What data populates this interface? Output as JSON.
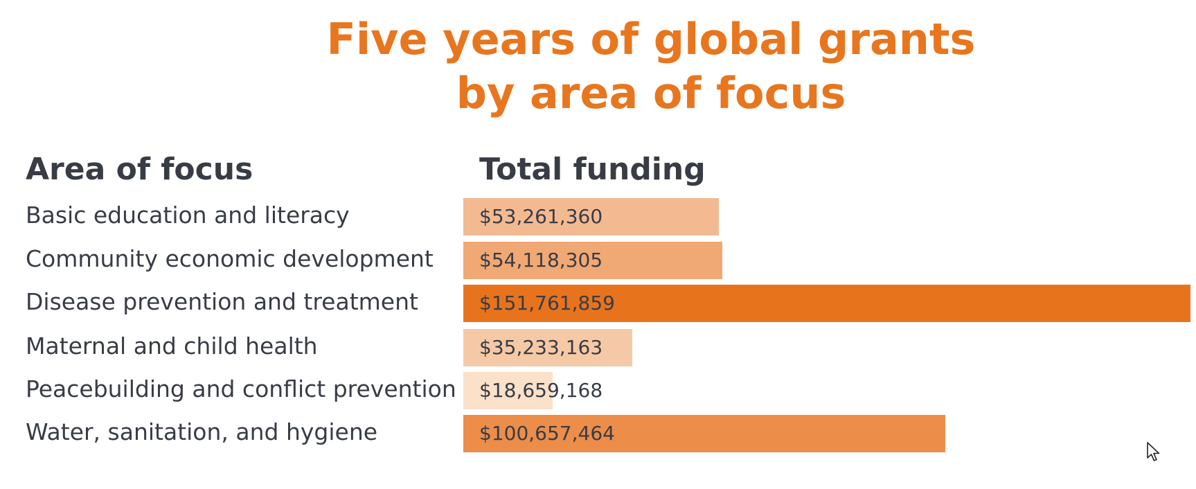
{
  "title": {
    "line1": "Five years of global grants",
    "line2": "by area of focus"
  },
  "chart_data": {
    "type": "bar",
    "orientation": "horizontal",
    "title": "Five years of global grants by area of focus",
    "category_header": "Area of focus",
    "value_header": "Total funding",
    "categories": [
      "Basic education and literacy",
      "Community economic development",
      "Disease prevention and treatment",
      "Maternal and child health",
      "Peacebuilding and conflict prevention",
      "Water, sanitation, and hygiene"
    ],
    "values": [
      53261360,
      54118305,
      151761859,
      35233163,
      18659168,
      100657464
    ],
    "value_labels": [
      "$53,261,360",
      "$54,118,305",
      "$151,761,859",
      "$35,233,163",
      "$18,659,168",
      "$100,657,464"
    ],
    "bar_colors": [
      "#f3ba92",
      "#f0a874",
      "#e8731d",
      "#f6c9a6",
      "#fbe0ca",
      "#ec8d4a"
    ],
    "xlim": [
      0,
      151761859
    ],
    "grid": false,
    "legend": "none"
  }
}
